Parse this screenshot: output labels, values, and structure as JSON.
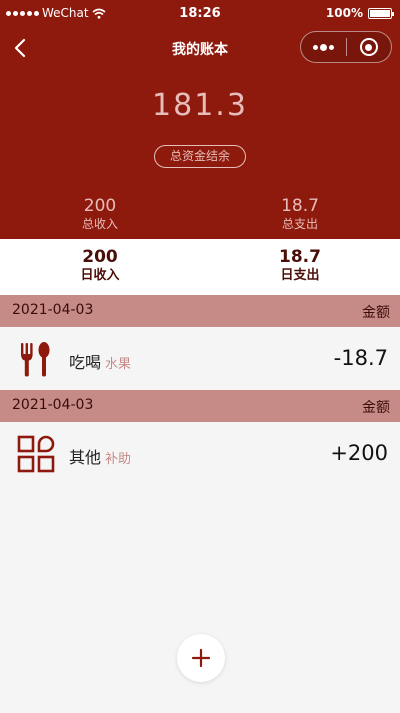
{
  "status_bar": {
    "carrier": "WeChat",
    "time": "18:26",
    "battery": "100%"
  },
  "nav": {
    "title": "我的账本",
    "icons": [
      "back-icon",
      "more-icon",
      "close-mini-program-icon"
    ]
  },
  "summary": {
    "balance": "181.3",
    "balance_label": "总资金结余",
    "total_income": "200",
    "total_income_label": "总收入",
    "total_expense": "18.7",
    "total_expense_label": "总支出",
    "daily_income": "200",
    "daily_income_label": "日收入",
    "daily_expense": "18.7",
    "daily_expense_label": "日支出"
  },
  "groups": [
    {
      "date": "2021-04-03",
      "amount_header": "金额",
      "entries": [
        {
          "icon": "utensils-icon",
          "category": "吃喝",
          "subcategory": "水果",
          "amount": "-18.7"
        }
      ]
    },
    {
      "date": "2021-04-03",
      "amount_header": "金额",
      "entries": [
        {
          "icon": "grid-shapes-icon",
          "category": "其他",
          "subcategory": "补助",
          "amount": "+200"
        }
      ]
    }
  ],
  "fab": {
    "icon": "plus-icon"
  },
  "colors": {
    "header_bg": "#8e1a0e",
    "header_text": "#e6bdb8",
    "date_row_bg": "#c78b87",
    "accent": "#8e1a0e"
  }
}
